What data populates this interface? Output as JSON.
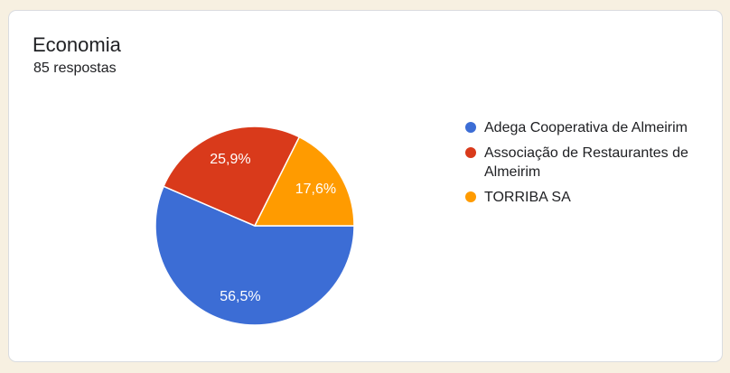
{
  "page": {
    "background_color": "#f7f0e1"
  },
  "card": {
    "title": "Economia",
    "subtitle": "85 respostas"
  },
  "chart_data": {
    "type": "pie",
    "title": "Economia",
    "total_responses_label": "85 respostas",
    "legend_position": "right",
    "start_angle_deg": 90,
    "direction": "clockwise",
    "label_color": "#ffffff",
    "slice_border_color": "#ffffff",
    "slices": [
      {
        "label": "Adega Cooperativa de Almeirim",
        "percent": 56.5,
        "percent_label": "56,5%",
        "color": "#3c6dd5"
      },
      {
        "label": "Associação de Restaurantes de Almeirim",
        "percent": 25.9,
        "percent_label": "25,9%",
        "color": "#d93a1b"
      },
      {
        "label": "TORRIBA SA",
        "percent": 17.6,
        "percent_label": "17,6%",
        "color": "#ff9b00"
      }
    ]
  }
}
